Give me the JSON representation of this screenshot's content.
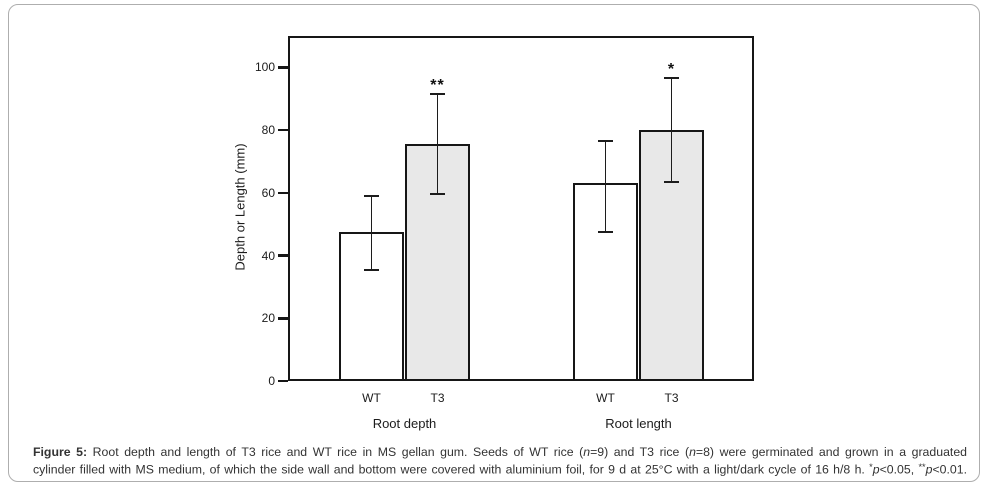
{
  "chart_data": {
    "type": "bar",
    "title": "",
    "xlabel": "",
    "ylabel": "Depth or Length (mm)",
    "ylim": [
      0,
      110
    ],
    "yticks": [
      0,
      20,
      40,
      60,
      80,
      100
    ],
    "grid": false,
    "legend_position": "none",
    "bar_outline_color": "#161616",
    "series_fills": {
      "WT": "#ffffff",
      "T3": "#e8e8e8"
    },
    "groups": [
      {
        "label": "Root depth",
        "bars": [
          {
            "label": "WT",
            "value": 47.5,
            "err_plus": 11.5,
            "err_minus": 12,
            "fill": "#ffffff",
            "sig": ""
          },
          {
            "label": "T3",
            "value": 75.5,
            "err_plus": 16,
            "err_minus": 16,
            "fill": "#e8e8e8",
            "sig": "**"
          }
        ]
      },
      {
        "label": "Root length",
        "bars": [
          {
            "label": "WT",
            "value": 63,
            "err_plus": 13.5,
            "err_minus": 15.5,
            "fill": "#ffffff",
            "sig": ""
          },
          {
            "label": "T3",
            "value": 80,
            "err_plus": 16.5,
            "err_minus": 16.5,
            "fill": "#e8e8e8",
            "sig": "*"
          }
        ]
      }
    ]
  },
  "caption": {
    "lines": [
      {
        "segments": [
          {
            "text": "Figure 5:",
            "style": "bold"
          },
          {
            "text": " Root depth and length of T3 rice and WT rice in MS gellan gum. Seeds of WT rice (",
            "style": ""
          },
          {
            "text": "n",
            "style": "italic"
          },
          {
            "text": "=9) and T3 rice (",
            "style": ""
          },
          {
            "text": "n",
            "style": "italic"
          },
          {
            "text": "=8) were germinated and grown in a graduated",
            "style": ""
          }
        ]
      },
      {
        "segments": [
          {
            "text": "cylinder filled with MS medium, of which the side wall and bottom were covered with aluminium foil, for 9 d at 25°C with a light/dark cycle of 16 h/8 h. ",
            "style": ""
          },
          {
            "text": "*",
            "style": "sup"
          },
          {
            "text": "p",
            "style": "italic"
          },
          {
            "text": "<0.05, ",
            "style": ""
          },
          {
            "text": "**",
            "style": "sup"
          },
          {
            "text": "p",
            "style": "italic"
          },
          {
            "text": "<0.01.",
            "style": ""
          }
        ]
      }
    ]
  }
}
